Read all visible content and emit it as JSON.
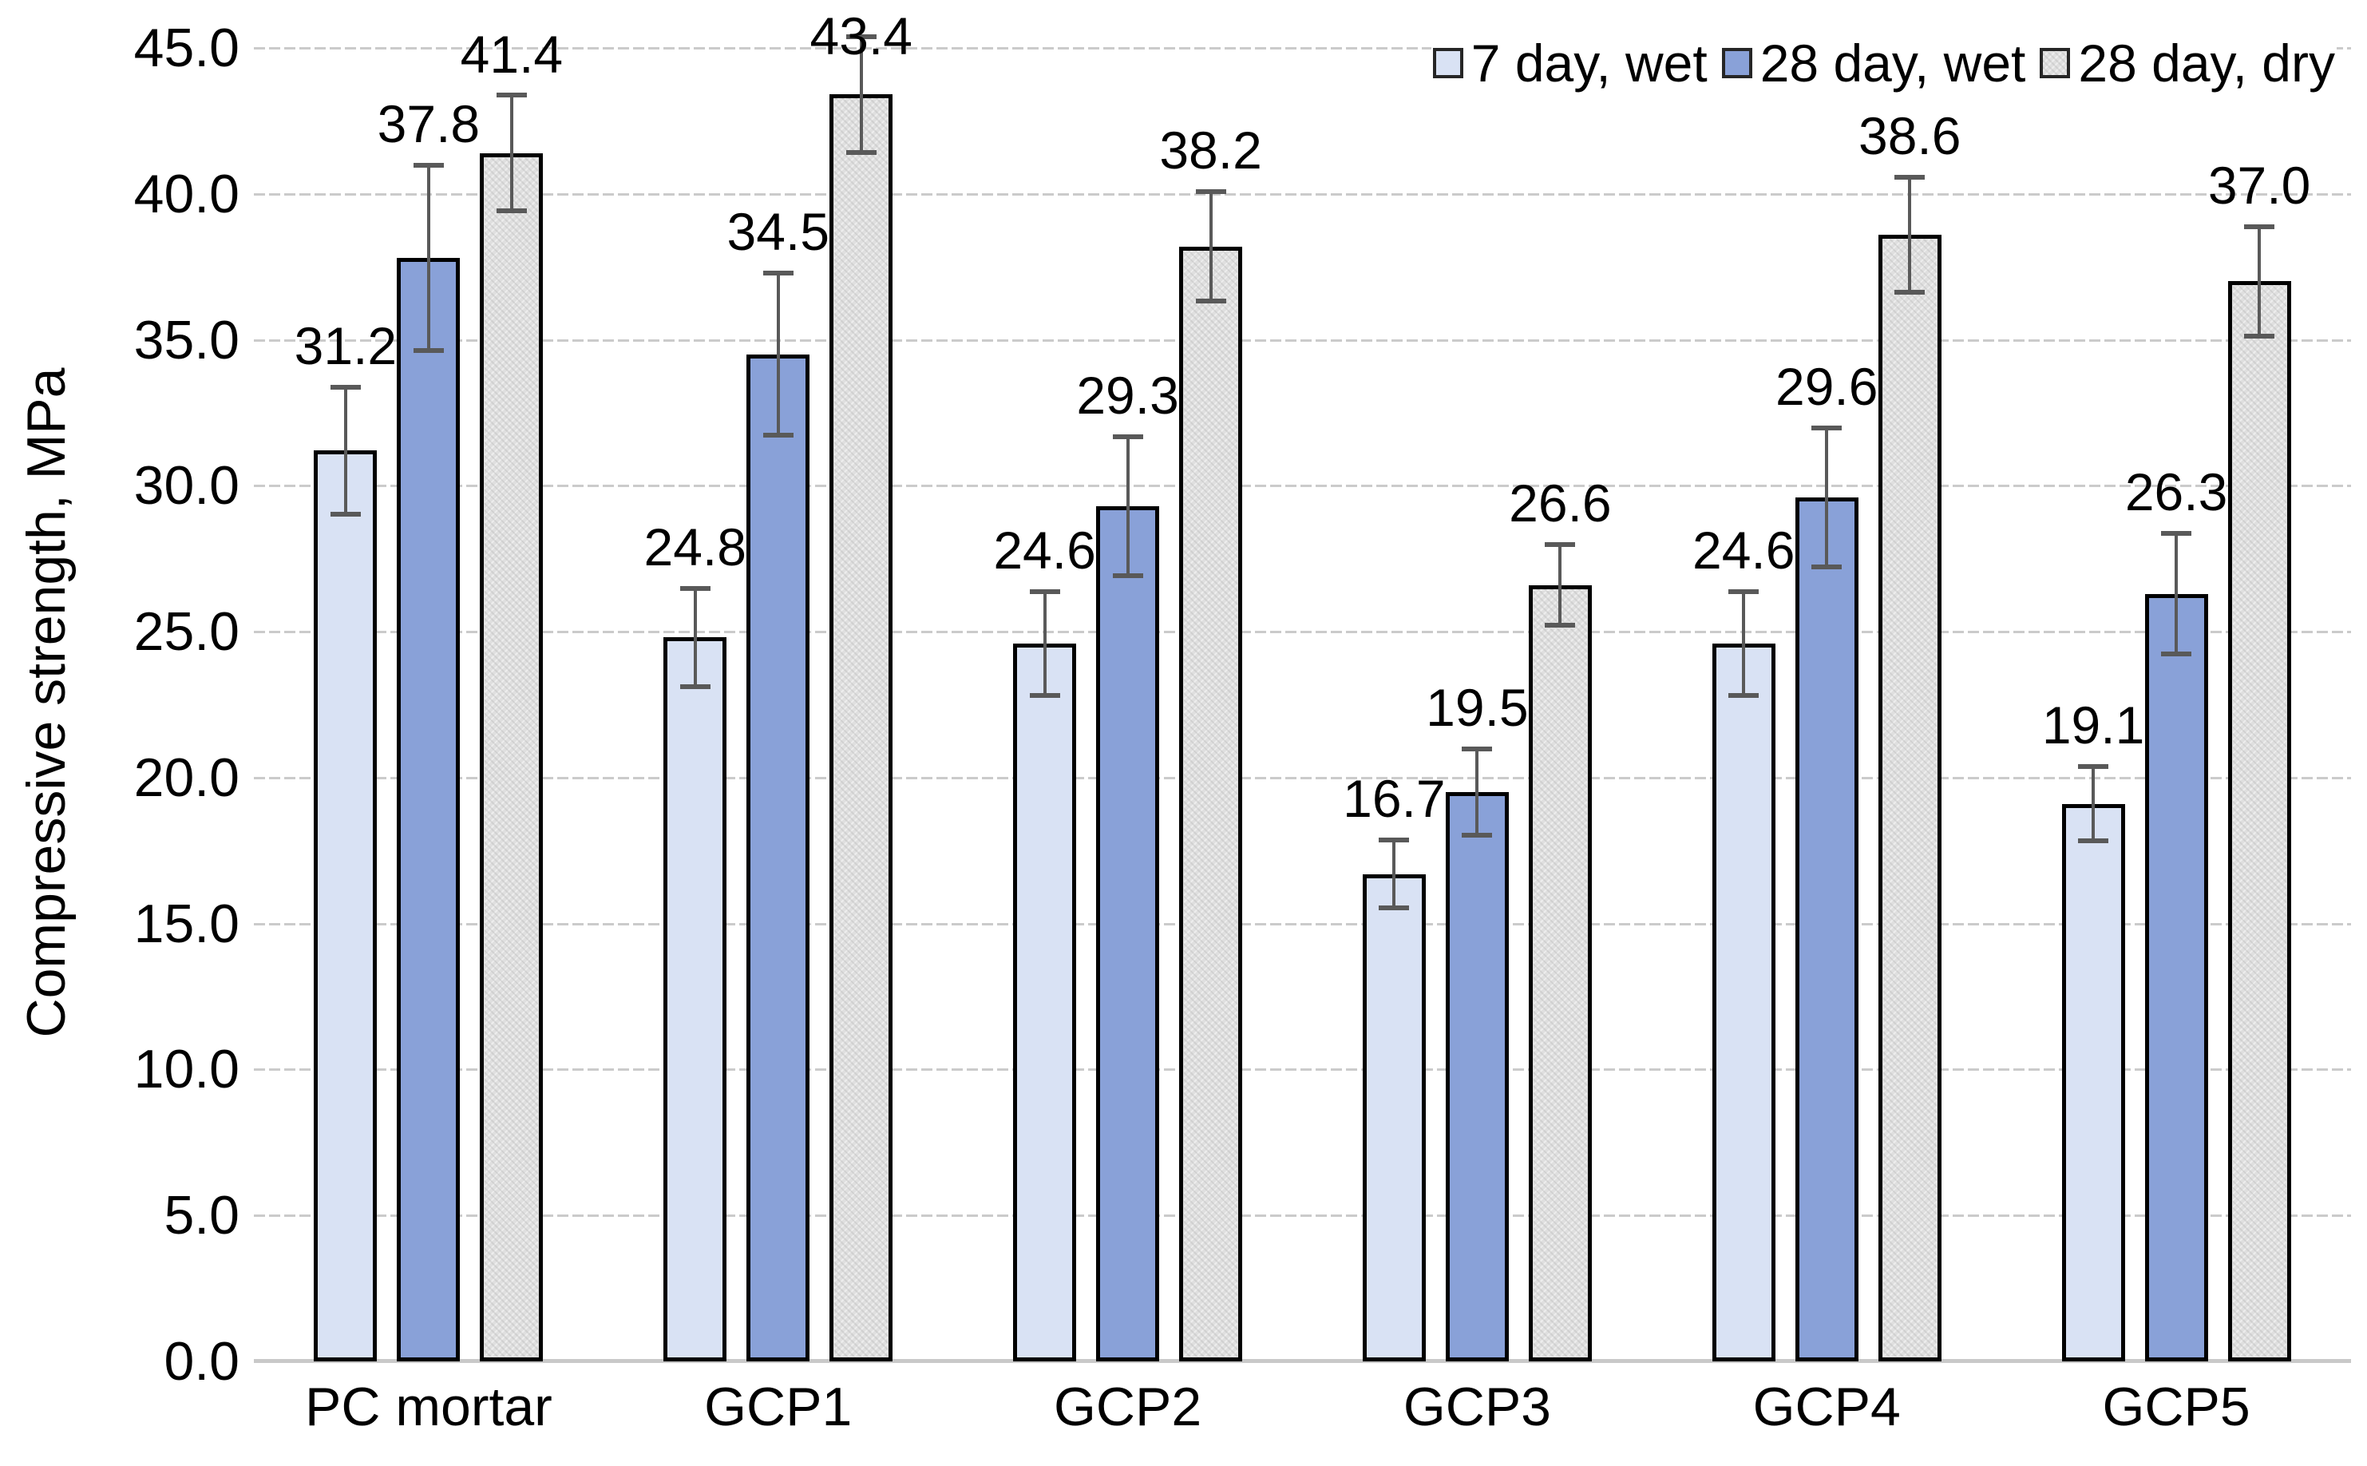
{
  "chart_data": {
    "type": "bar",
    "title": "",
    "xlabel": "",
    "ylabel": "Compressive strength, MPa",
    "ylim": [
      0,
      45
    ],
    "ytick_step": 5,
    "ytick_labels": [
      "0.0",
      "5.0",
      "10.0",
      "15.0",
      "20.0",
      "25.0",
      "30.0",
      "35.0",
      "40.0",
      "45.0"
    ],
    "grid": true,
    "legend_position": "top-right",
    "categories": [
      "PC mortar",
      "GCP1",
      "GCP2",
      "GCP3",
      "GCP4",
      "GCP5"
    ],
    "series": [
      {
        "name": "7 day, wet",
        "color": "#d9e2f4",
        "textured": false,
        "values": [
          31.2,
          24.8,
          24.6,
          16.7,
          24.6,
          19.1
        ],
        "errors": [
          2.2,
          1.7,
          1.8,
          1.2,
          1.8,
          1.3
        ]
      },
      {
        "name": "28 day, wet",
        "color": "#89a1d8",
        "textured": false,
        "values": [
          37.8,
          34.5,
          29.3,
          19.5,
          29.6,
          26.3
        ],
        "errors": [
          3.2,
          2.8,
          2.4,
          1.5,
          2.4,
          2.1
        ]
      },
      {
        "name": "28 day, dry",
        "color": "#dfdfdf",
        "textured": true,
        "values": [
          41.4,
          43.4,
          38.2,
          26.6,
          38.6,
          37.0
        ],
        "errors": [
          2.0,
          2.0,
          1.9,
          1.4,
          2.0,
          1.9
        ]
      }
    ],
    "data_label_decimals": 1
  },
  "colors": {
    "background": "#ffffff",
    "grid": "#cbcbcb",
    "axis_line": "#c9c9c9",
    "bar_border": "#000000",
    "error_bar": "#595959",
    "text": "#000000"
  }
}
